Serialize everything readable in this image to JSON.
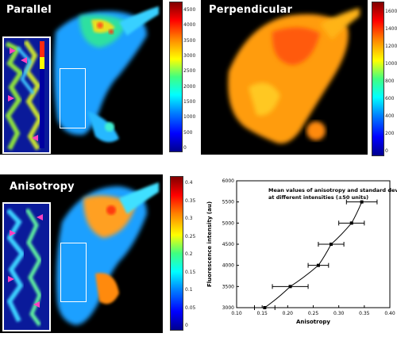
{
  "panels": {
    "parallel": {
      "title": "Parallel",
      "colorbar_ticks": [
        "4500",
        "4000",
        "3500",
        "3000",
        "2500",
        "2000",
        "1500",
        "1000",
        "500",
        "0"
      ]
    },
    "perpendicular": {
      "title": "Perpendicular",
      "colorbar_ticks": [
        "1600",
        "1400",
        "1200",
        "1000",
        "800",
        "600",
        "400",
        "200",
        "0"
      ]
    },
    "anisotropy": {
      "title": "Anisotropy",
      "colorbar_ticks": [
        "0.4",
        "0.35",
        "0.3",
        "0.25",
        "0.2",
        "0.15",
        "0.1",
        "0.05",
        "0"
      ]
    }
  },
  "chart_data": {
    "type": "scatter",
    "title_line1": "Mean values of anisotropy and standard deviations",
    "title_line2": "at different intensities (±50 units)",
    "xlabel": "Anisotropy",
    "ylabel": "Fluorescence intensity (au)",
    "xlim": [
      0.1,
      0.4
    ],
    "ylim": [
      3000,
      6000
    ],
    "x_ticks": [
      "0.10",
      "0.15",
      "0.20",
      "0.25",
      "0.30",
      "0.35",
      "0.40"
    ],
    "y_ticks": [
      "3000",
      "3500",
      "4000",
      "4500",
      "5000",
      "5500",
      "6000"
    ],
    "points": [
      {
        "x": 0.155,
        "y": 3000,
        "xerr": 0.02
      },
      {
        "x": 0.205,
        "y": 3500,
        "xerr": 0.035
      },
      {
        "x": 0.26,
        "y": 4000,
        "xerr": 0.02
      },
      {
        "x": 0.285,
        "y": 4500,
        "xerr": 0.025
      },
      {
        "x": 0.325,
        "y": 5000,
        "xerr": 0.025
      },
      {
        "x": 0.345,
        "y": 5500,
        "xerr": 0.03
      }
    ]
  }
}
